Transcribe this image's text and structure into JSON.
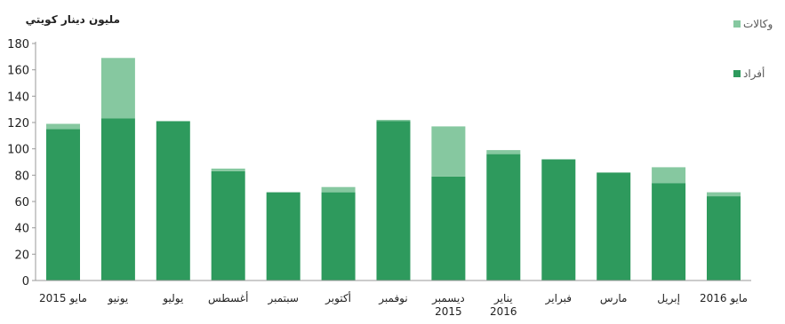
{
  "chart_data": {
    "type": "bar",
    "stacked": true,
    "ylabel": "مليون دينار كويتي",
    "ylim": [
      0,
      180
    ],
    "yticks": [
      0,
      20,
      40,
      60,
      80,
      100,
      120,
      140,
      160,
      180
    ],
    "grid": false,
    "legend_position": "top-right",
    "categories": [
      [
        "مايو 2015"
      ],
      [
        "يونيو"
      ],
      [
        "يوليو"
      ],
      [
        "أغسطس"
      ],
      [
        "سبتمبر"
      ],
      [
        "أكتوبر"
      ],
      [
        "نوفمبر"
      ],
      [
        "ديسمبر",
        "2015"
      ],
      [
        "يناير",
        "2016"
      ],
      [
        "فبراير"
      ],
      [
        "مارس"
      ],
      [
        "إبريل"
      ],
      [
        "مايو 2016"
      ]
    ],
    "series": [
      {
        "name": "أفراد",
        "color": "#2e9a5d",
        "values": [
          115,
          123,
          121,
          83,
          67,
          67,
          121,
          79,
          96,
          92,
          82,
          74,
          64
        ]
      },
      {
        "name": "وكالات",
        "color": "#86c8a0",
        "values": [
          4,
          46,
          0,
          2,
          0,
          4,
          1,
          38,
          3,
          0,
          0,
          12,
          3
        ]
      }
    ]
  }
}
